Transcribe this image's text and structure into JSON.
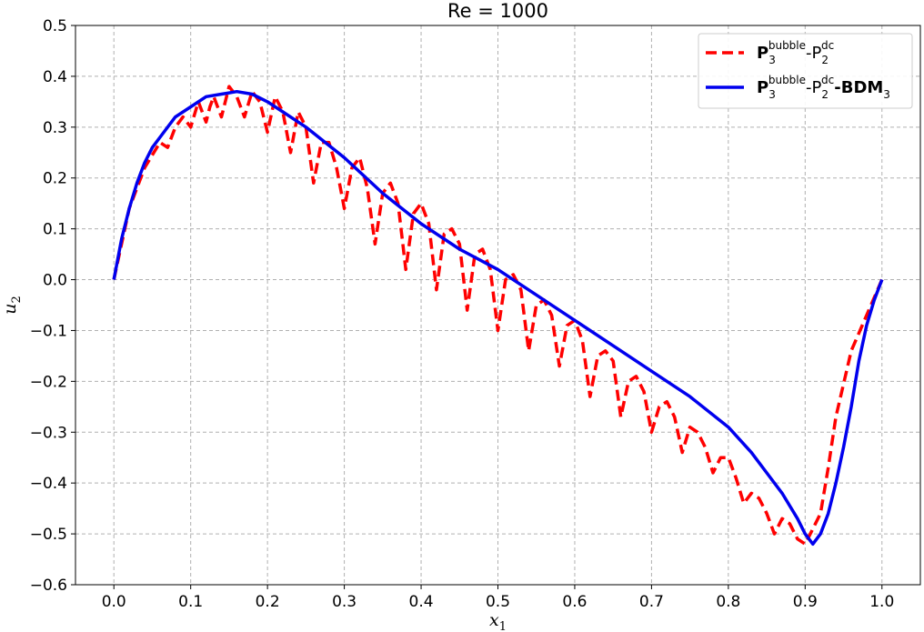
{
  "chart_data": {
    "type": "line",
    "title": "Re = 1000",
    "xlabel": "x",
    "xlabel_sub": "1",
    "ylabel": "u",
    "ylabel_sub": "2",
    "xlim": [
      -0.05,
      1.05
    ],
    "ylim": [
      -0.6,
      0.5
    ],
    "x_ticks": [
      0.0,
      0.1,
      0.2,
      0.3,
      0.4,
      0.5,
      0.6,
      0.7,
      0.8,
      0.9,
      1.0
    ],
    "y_ticks": [
      -0.6,
      -0.5,
      -0.4,
      -0.3,
      -0.2,
      -0.1,
      0.0,
      0.1,
      0.2,
      0.3,
      0.4,
      0.5
    ],
    "grid": true,
    "legend_position": "top-right",
    "series": [
      {
        "name": "P3^bubble-P2^dc",
        "legend": {
          "base1": "P",
          "sub1": "3",
          "sup1": "bubble",
          "sep": "-",
          "base2": "P",
          "sub2": "2",
          "sup2": "dc",
          "suffix": "",
          "suffix_sub": ""
        },
        "color": "#ff0000",
        "style": "dashed",
        "x": [
          0.0,
          0.02,
          0.04,
          0.06,
          0.07,
          0.08,
          0.09,
          0.1,
          0.11,
          0.12,
          0.125,
          0.13,
          0.14,
          0.15,
          0.16,
          0.17,
          0.18,
          0.19,
          0.2,
          0.21,
          0.22,
          0.23,
          0.24,
          0.25,
          0.26,
          0.27,
          0.28,
          0.29,
          0.3,
          0.31,
          0.32,
          0.33,
          0.34,
          0.35,
          0.36,
          0.37,
          0.38,
          0.39,
          0.4,
          0.41,
          0.42,
          0.43,
          0.44,
          0.45,
          0.46,
          0.47,
          0.48,
          0.49,
          0.5,
          0.51,
          0.52,
          0.53,
          0.54,
          0.55,
          0.56,
          0.57,
          0.58,
          0.59,
          0.6,
          0.61,
          0.62,
          0.63,
          0.64,
          0.65,
          0.66,
          0.67,
          0.68,
          0.69,
          0.7,
          0.71,
          0.72,
          0.73,
          0.74,
          0.75,
          0.76,
          0.77,
          0.78,
          0.79,
          0.8,
          0.81,
          0.82,
          0.83,
          0.84,
          0.85,
          0.86,
          0.87,
          0.88,
          0.89,
          0.9,
          0.91,
          0.92,
          0.93,
          0.94,
          0.96,
          0.98,
          1.0
        ],
        "y": [
          0.0,
          0.14,
          0.22,
          0.27,
          0.26,
          0.3,
          0.32,
          0.3,
          0.35,
          0.31,
          0.34,
          0.36,
          0.32,
          0.38,
          0.36,
          0.32,
          0.37,
          0.35,
          0.29,
          0.36,
          0.33,
          0.25,
          0.33,
          0.3,
          0.19,
          0.27,
          0.27,
          0.22,
          0.14,
          0.22,
          0.24,
          0.18,
          0.07,
          0.17,
          0.19,
          0.15,
          0.02,
          0.13,
          0.15,
          0.11,
          -0.02,
          0.09,
          0.1,
          0.07,
          -0.06,
          0.05,
          0.06,
          0.02,
          -0.1,
          0.0,
          0.01,
          -0.02,
          -0.14,
          -0.05,
          -0.04,
          -0.07,
          -0.17,
          -0.09,
          -0.08,
          -0.12,
          -0.23,
          -0.15,
          -0.14,
          -0.16,
          -0.27,
          -0.2,
          -0.19,
          -0.22,
          -0.3,
          -0.25,
          -0.24,
          -0.27,
          -0.34,
          -0.29,
          -0.3,
          -0.33,
          -0.38,
          -0.35,
          -0.35,
          -0.39,
          -0.44,
          -0.42,
          -0.43,
          -0.46,
          -0.5,
          -0.47,
          -0.48,
          -0.51,
          -0.52,
          -0.49,
          -0.46,
          -0.37,
          -0.27,
          -0.14,
          -0.07,
          0.0
        ]
      },
      {
        "name": "P3^bubble-P2^dc-BDM3",
        "legend": {
          "base1": "P",
          "sub1": "3",
          "sup1": "bubble",
          "sep": "-",
          "base2": "P",
          "sub2": "2",
          "sup2": "dc",
          "suffix": "-BDM",
          "suffix_sub": "3"
        },
        "color": "#0000ee",
        "style": "solid",
        "x": [
          0.0,
          0.01,
          0.02,
          0.03,
          0.04,
          0.05,
          0.06,
          0.08,
          0.1,
          0.12,
          0.14,
          0.16,
          0.18,
          0.2,
          0.22,
          0.25,
          0.3,
          0.35,
          0.4,
          0.45,
          0.5,
          0.55,
          0.6,
          0.65,
          0.7,
          0.75,
          0.8,
          0.83,
          0.85,
          0.87,
          0.89,
          0.9,
          0.91,
          0.92,
          0.93,
          0.94,
          0.95,
          0.96,
          0.97,
          0.98,
          0.99,
          1.0
        ],
        "y": [
          0.0,
          0.08,
          0.14,
          0.19,
          0.23,
          0.26,
          0.28,
          0.32,
          0.34,
          0.36,
          0.365,
          0.37,
          0.365,
          0.35,
          0.33,
          0.3,
          0.24,
          0.17,
          0.11,
          0.06,
          0.02,
          -0.03,
          -0.08,
          -0.13,
          -0.18,
          -0.23,
          -0.29,
          -0.34,
          -0.38,
          -0.42,
          -0.47,
          -0.5,
          -0.52,
          -0.5,
          -0.46,
          -0.4,
          -0.33,
          -0.25,
          -0.16,
          -0.09,
          -0.04,
          0.0
        ]
      }
    ]
  }
}
